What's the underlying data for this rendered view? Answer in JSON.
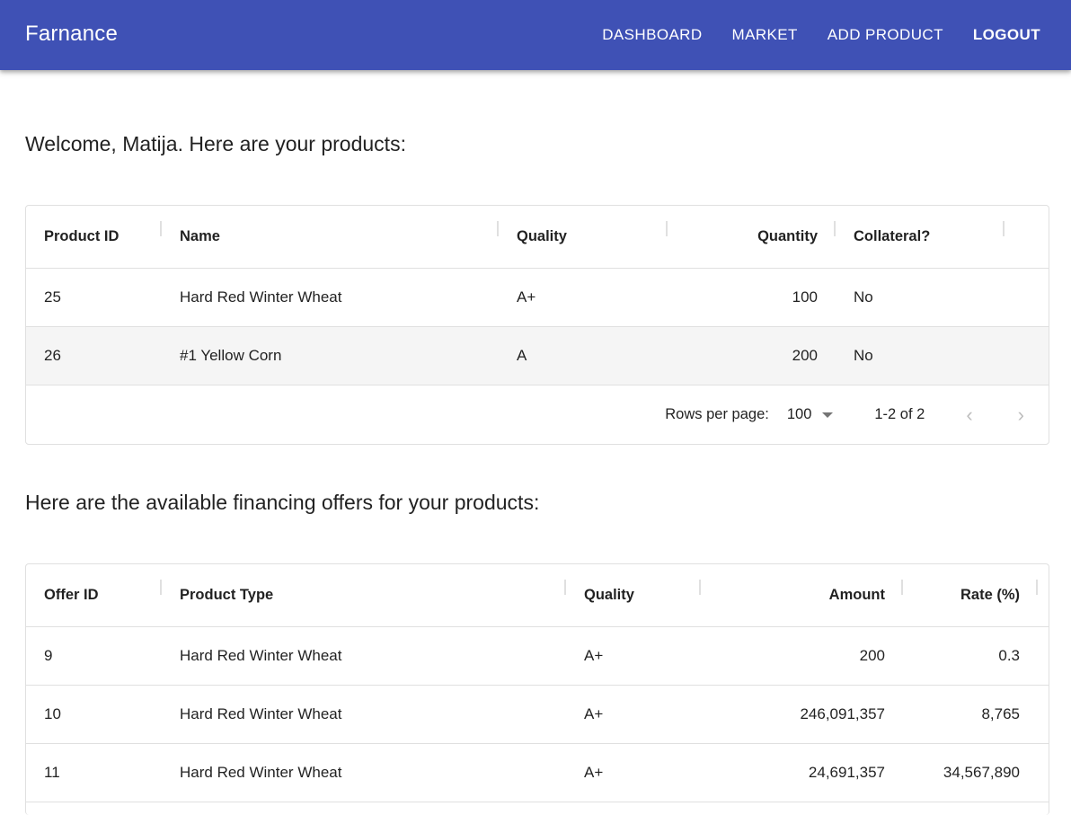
{
  "appbar": {
    "title": "Farnance",
    "nav": [
      "DASHBOARD",
      "MARKET",
      "ADD PRODUCT",
      "LOGOUT"
    ],
    "color": "#3f51b5"
  },
  "products": {
    "heading": "Welcome, Matija. Here are your products:",
    "columns": [
      "Product ID",
      "Name",
      "Quality",
      "Quantity",
      "Collateral?"
    ],
    "rows": [
      [
        "25",
        "Hard Red Winter Wheat",
        "A+",
        "100",
        "No"
      ],
      [
        "26",
        "#1 Yellow Corn",
        "A",
        "200",
        "No"
      ]
    ],
    "pagination": {
      "rows_per_page_label": "Rows per page:",
      "rows_per_page": "100",
      "range": "1-2 of 2"
    }
  },
  "offers": {
    "heading": "Here are the available financing offers for your products:",
    "columns": [
      "Offer ID",
      "Product Type",
      "Quality",
      "Amount",
      "Rate (%)"
    ],
    "rows": [
      [
        "9",
        "Hard Red Winter Wheat",
        "A+",
        "200",
        "0.3"
      ],
      [
        "10",
        "Hard Red Winter Wheat",
        "A+",
        "246,091,357",
        "8,765"
      ],
      [
        "11",
        "Hard Red Winter Wheat",
        "A+",
        "24,691,357",
        "34,567,890"
      ]
    ]
  }
}
